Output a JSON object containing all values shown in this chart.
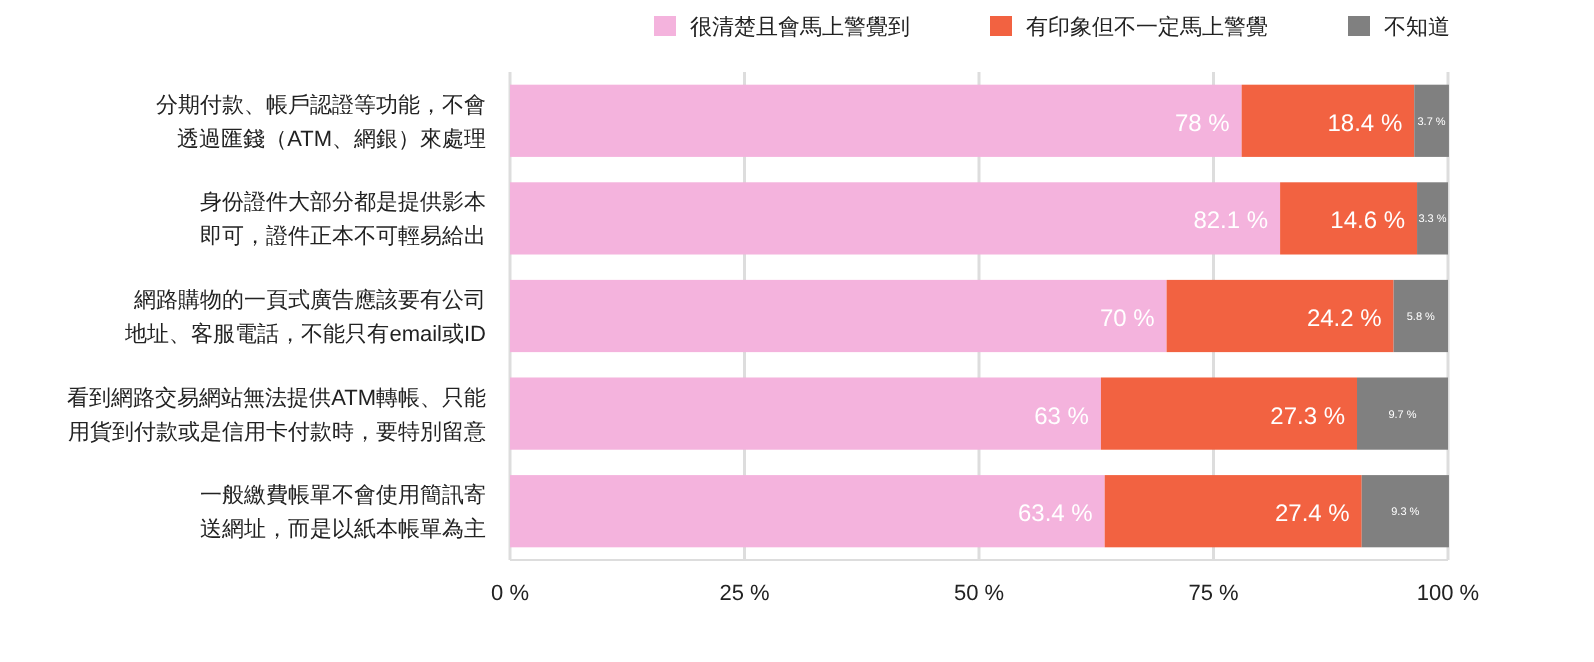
{
  "chart_data": {
    "type": "bar",
    "orientation": "horizontal",
    "stacked": true,
    "categories": [
      "分期付款、帳戶認證等功能，不會透過匯錢（ATM、網銀）來處理",
      "身份證件大部分都是提供影本即可，證件正本不可輕易給出",
      "網路購物的一頁式廣告應該要有公司地址、客服電話，不能只有email或ID",
      "看到網路交易網站無法提供ATM轉帳、只能用貨到付款或是信用卡付款時，要特別留意",
      "一般繳費帳單不會使用簡訊寄送網址，而是以紙本帳單為主"
    ],
    "series": [
      {
        "name": "很清楚且會馬上警覺到",
        "color": "#f4b3dd",
        "values": [
          78,
          82.1,
          70,
          63,
          63.4
        ],
        "value_labels": [
          "78 %",
          "82.1 %",
          "70 %",
          "63 %",
          "63.4 %"
        ]
      },
      {
        "name": "有印象但不一定馬上警覺",
        "color": "#f26241",
        "values": [
          18.4,
          14.6,
          24.2,
          27.3,
          27.4
        ],
        "value_labels": [
          "18.4 %",
          "14.6 %",
          "24.2 %",
          "27.3 %",
          "27.4 %"
        ]
      },
      {
        "name": "不知道",
        "color": "#808080",
        "values": [
          3.7,
          3.3,
          5.8,
          9.7,
          9.3
        ],
        "value_labels": [
          "3.7 %",
          "3.3 %",
          "5.8 %",
          "9.7 %",
          "9.3 %"
        ]
      }
    ],
    "xlim": [
      0,
      100
    ],
    "xticks": [
      {
        "value": 0,
        "label": "0 %"
      },
      {
        "value": 25,
        "label": "25 %"
      },
      {
        "value": 50,
        "label": "50 %"
      },
      {
        "value": 75,
        "label": "75 %"
      },
      {
        "value": 100,
        "label": "100 %"
      }
    ],
    "grid": "x",
    "legend": "top"
  }
}
